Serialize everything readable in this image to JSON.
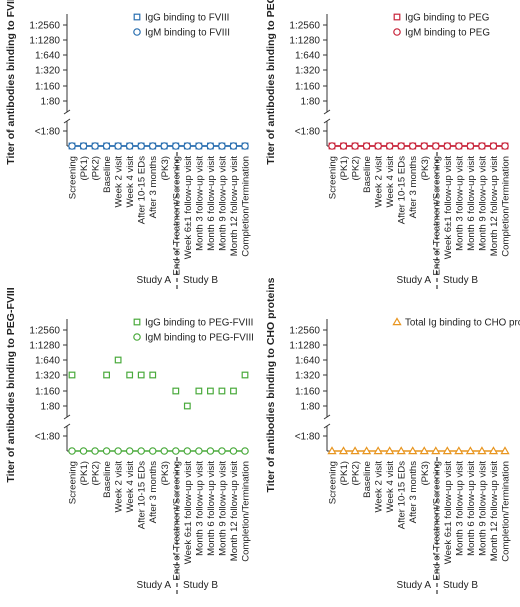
{
  "categories": [
    "Screening",
    "(PK1)",
    "(PK2)",
    "Baseline",
    "Week 2 visit",
    "Week 4 visit",
    "After 10-15 EDs",
    "After 3 months",
    "(PK3)",
    "End of Treatment/Screening",
    "Week 6±1 follow-up visit",
    "Month 3 follow-up visit",
    "Month 6 follow-up visit",
    "Month 9 follow-up visit",
    "Month 12 follow-up visit",
    "Completion/Termination"
  ],
  "y_ticks": [
    "<1:80",
    "1:80",
    "1:160",
    "1:320",
    "1:640",
    "1:1280",
    "1:2560"
  ],
  "studies": [
    "Study A",
    "Study B"
  ],
  "chart_data": [
    {
      "type": "scatter",
      "ylabel": "Titer of antibodies binding to FVIII",
      "series": [
        {
          "name": "IgG binding to FVIII",
          "marker": "square",
          "color": "#2a6fb0",
          "values": [
            "<1:80",
            "<1:80",
            "<1:80",
            "<1:80",
            "<1:80",
            "<1:80",
            "<1:80",
            "<1:80",
            "<1:80",
            "<1:80",
            "<1:80",
            "<1:80",
            "<1:80",
            "<1:80",
            "<1:80",
            "<1:80"
          ]
        },
        {
          "name": "IgM binding to FVIII",
          "marker": "circle",
          "color": "#2a6fb0",
          "values": [
            "<1:80",
            "<1:80",
            "<1:80",
            "<1:80",
            "<1:80",
            "<1:80",
            "<1:80",
            "<1:80",
            "<1:80",
            "<1:80",
            "<1:80",
            "<1:80",
            "<1:80",
            "<1:80",
            "<1:80",
            "<1:80"
          ]
        }
      ]
    },
    {
      "type": "scatter",
      "ylabel": "Titer of antibodies binding to PEG",
      "series": [
        {
          "name": "IgG binding to PEG",
          "marker": "square",
          "color": "#c8243a",
          "values": [
            "<1:80",
            "<1:80",
            "<1:80",
            "<1:80",
            "<1:80",
            "<1:80",
            "<1:80",
            "<1:80",
            "<1:80",
            "<1:80",
            "<1:80",
            "<1:80",
            "<1:80",
            "<1:80",
            "<1:80",
            "<1:80"
          ]
        },
        {
          "name": "IgM binding to PEG",
          "marker": "circle",
          "color": "#c8243a",
          "values": [
            "<1:80",
            "<1:80",
            "<1:80",
            "<1:80",
            "<1:80",
            "<1:80",
            "<1:80",
            "<1:80",
            "<1:80",
            "<1:80",
            "<1:80",
            "<1:80",
            "<1:80",
            "<1:80",
            "<1:80",
            "<1:80"
          ]
        }
      ]
    },
    {
      "type": "scatter",
      "ylabel": "Titer of antibodies binding to PEG-FVIII",
      "series": [
        {
          "name": "IgG binding to PEG-FVIII",
          "marker": "square",
          "color": "#4aaa3c",
          "values": [
            "1:320",
            null,
            null,
            "1:320",
            "1:640",
            "1:320",
            "1:320",
            "1:320",
            null,
            "1:160",
            "1:80",
            "1:160",
            "1:160",
            "1:160",
            "1:160",
            "1:320"
          ]
        },
        {
          "name": "IgM binding to PEG-FVIII",
          "marker": "circle",
          "color": "#4aaa3c",
          "values": [
            "<1:80",
            "<1:80",
            "<1:80",
            "<1:80",
            "<1:80",
            "<1:80",
            "<1:80",
            "<1:80",
            "<1:80",
            "<1:80",
            "<1:80",
            "<1:80",
            "<1:80",
            "<1:80",
            "<1:80",
            "<1:80"
          ]
        }
      ]
    },
    {
      "type": "scatter",
      "ylabel": "Titer of antibodies binding to CHO proteins",
      "series": [
        {
          "name": "Total Ig binding to CHO proteins",
          "marker": "triangle",
          "color": "#e8951f",
          "values": [
            "<1:80",
            "<1:80",
            "<1:80",
            "<1:80",
            "<1:80",
            "<1:80",
            "<1:80",
            "<1:80",
            "<1:80",
            "<1:80",
            "<1:80",
            "<1:80",
            "<1:80",
            "<1:80",
            "<1:80",
            "<1:80"
          ]
        }
      ]
    }
  ]
}
